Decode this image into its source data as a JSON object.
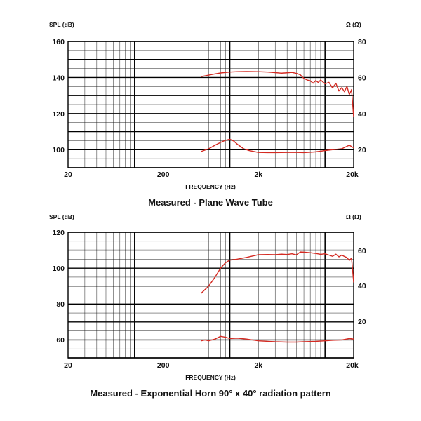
{
  "chart_data": [
    {
      "type": "line",
      "title": "Measured - Plane Wave Tube",
      "xlabel": "FREQUENCY (Hz)",
      "ylabel": "SPL (dB)",
      "y2label": "Ω (Ω)",
      "x_scale": "log",
      "xlim": [
        20,
        20000
      ],
      "xticks": [
        "20",
        "200",
        "2k",
        "20k"
      ],
      "ylim": [
        90,
        160
      ],
      "yticks": [
        "160",
        "140",
        "120",
        "100"
      ],
      "y2lim": [
        10,
        80
      ],
      "y2ticks": [
        "80",
        "60",
        "40",
        "20"
      ],
      "grid": true,
      "colors": {
        "curve": "#d42a22"
      },
      "series": [
        {
          "axis": "left",
          "x": [
            500,
            600,
            700,
            800,
            1000,
            1200,
            1500,
            2000,
            2500,
            3000,
            3500,
            4000,
            4500,
            5000,
            5500,
            6000,
            6500,
            7000,
            7500,
            8000,
            8500,
            9000,
            10000,
            11000,
            12000,
            13000,
            14000,
            15000,
            16000,
            17000,
            18000,
            19000,
            20000
          ],
          "y": [
            140.5,
            141.3,
            142,
            142.5,
            143,
            143.2,
            143.3,
            143.2,
            143,
            142.7,
            142.4,
            142.6,
            142.8,
            142.3,
            141.5,
            139.5,
            138.6,
            138.2,
            136.8,
            138.3,
            137.2,
            138.6,
            136.5,
            137.3,
            134.2,
            136.8,
            132.5,
            134.4,
            132.1,
            135.1,
            130.5,
            133.3,
            118
          ]
        },
        {
          "axis": "right",
          "x": [
            500,
            600,
            700,
            800,
            900,
            1000,
            1100,
            1200,
            1400,
            1600,
            2000,
            2500,
            3000,
            4000,
            5000,
            6000,
            7000,
            8000,
            10000,
            12000,
            15000,
            18000,
            20000
          ],
          "y": [
            19,
            20.5,
            22.5,
            24,
            25.2,
            25.8,
            24.8,
            23,
            20.5,
            19.5,
            18.5,
            18.4,
            18.4,
            18.5,
            18.5,
            18.4,
            18.6,
            18.8,
            19.5,
            20,
            20.5,
            22.5,
            21
          ]
        }
      ]
    },
    {
      "type": "line",
      "title": "Measured - Exponential Horn 90° x 40° radiation pattern",
      "xlabel": "FREQUENCY (Hz)",
      "ylabel": "SPL (dB)",
      "y2label": "Ω (Ω)",
      "x_scale": "log",
      "xlim": [
        20,
        20000
      ],
      "xticks": [
        "20",
        "200",
        "2k",
        "20k"
      ],
      "ylim": [
        50,
        120
      ],
      "yticks": [
        "120",
        "100",
        "80",
        "60"
      ],
      "y2lim": [
        0,
        70
      ],
      "y2ticks": [
        "60",
        "40",
        "20"
      ],
      "grid": true,
      "colors": {
        "curve": "#d42a22"
      },
      "series": [
        {
          "axis": "left",
          "x": [
            500,
            600,
            700,
            800,
            900,
            1000,
            1200,
            1500,
            2000,
            2500,
            3000,
            3500,
            4000,
            4500,
            5000,
            5500,
            6000,
            7000,
            8000,
            9000,
            10000,
            11000,
            12000,
            13000,
            14000,
            15000,
            16000,
            17000,
            18000,
            19000,
            20000
          ],
          "y": [
            86,
            90,
            95,
            100,
            103,
            104.5,
            105,
            106,
            107.5,
            107.6,
            107.5,
            107.8,
            107.6,
            108,
            107.4,
            109,
            108.9,
            108.6,
            108.2,
            107.7,
            108,
            107.3,
            106.6,
            107.8,
            106.3,
            107.3,
            106.5,
            105.9,
            104.3,
            105.6,
            92
          ]
        },
        {
          "axis": "right",
          "x": [
            500,
            550,
            600,
            700,
            800,
            900,
            1000,
            1200,
            1500,
            2000,
            3000,
            4000,
            5000,
            6000,
            8000,
            10000,
            12000,
            15000,
            18000,
            20000
          ],
          "y": [
            9.5,
            10,
            9.5,
            10.5,
            12,
            11.5,
            10.8,
            11,
            10.5,
            9.5,
            9,
            8.8,
            8.8,
            9,
            9.2,
            9.5,
            9.8,
            10,
            10.8,
            10.5
          ]
        }
      ]
    }
  ]
}
